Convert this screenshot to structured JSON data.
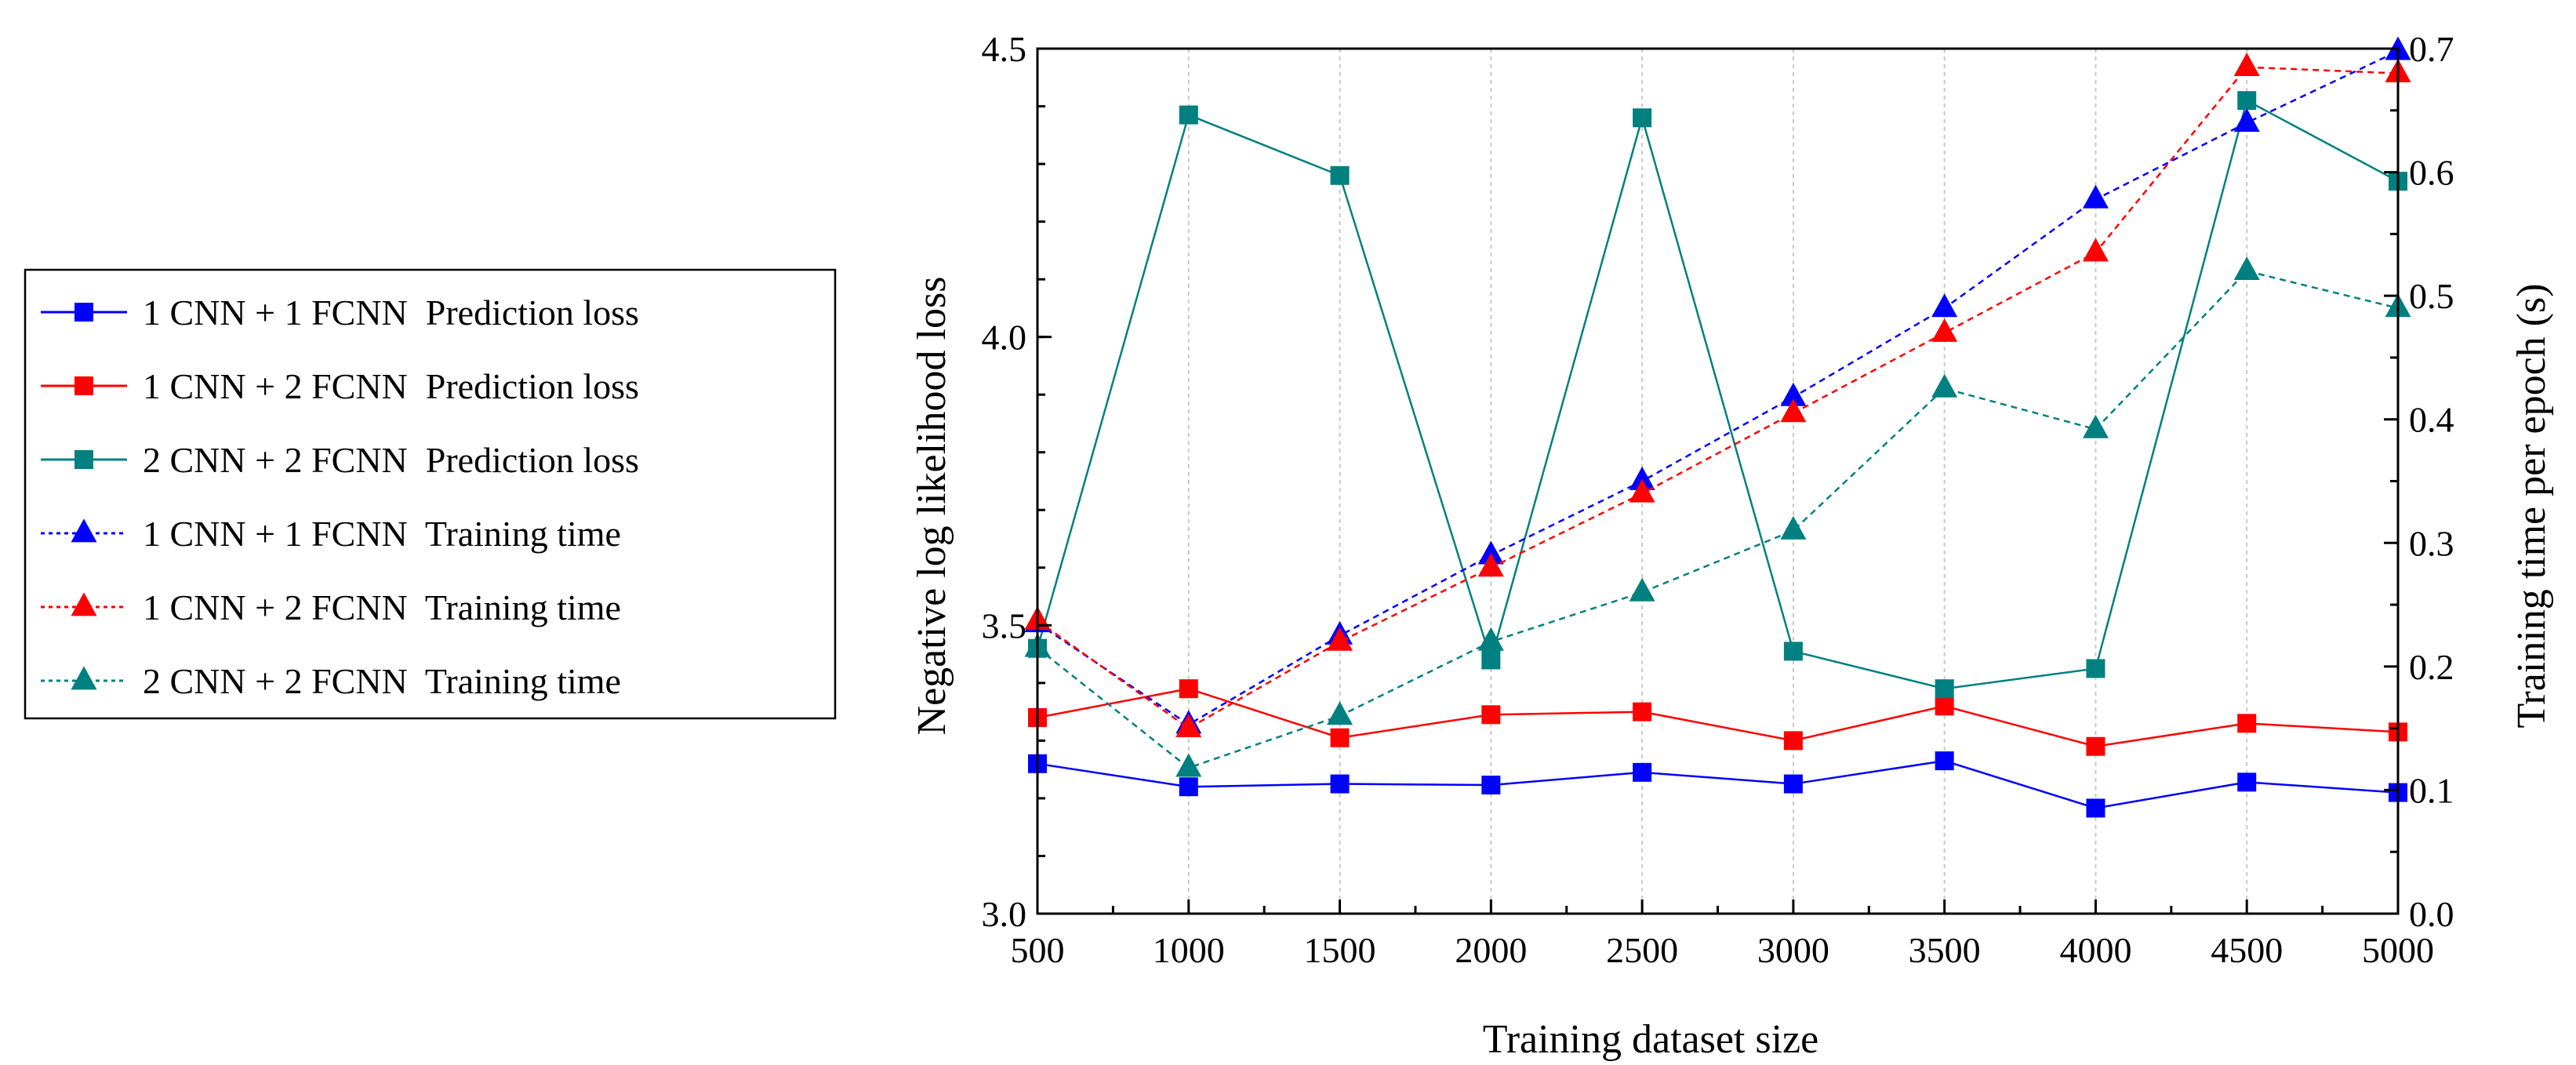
{
  "chart_data": {
    "type": "line",
    "title": "",
    "xlabel": "Training dataset size",
    "ylabel": "Negative log likelihood loss",
    "y2label": "Training time per epoch (s)",
    "x": [
      500,
      1000,
      1500,
      2000,
      2500,
      3000,
      3500,
      4000,
      4500,
      5000
    ],
    "xlim": [
      500,
      5000
    ],
    "ylim": [
      3.0,
      4.5
    ],
    "y2lim": [
      0.0,
      0.7
    ],
    "x_ticks": [
      "500",
      "1000",
      "1500",
      "2000",
      "2500",
      "3000",
      "3500",
      "4000",
      "4500",
      "5000"
    ],
    "y_ticks": [
      "3.0",
      "3.5",
      "4.0",
      "4.5"
    ],
    "y2_ticks": [
      "0.0",
      "0.1",
      "0.2",
      "0.3",
      "0.4",
      "0.5",
      "0.6",
      "0.7"
    ],
    "grid": "vertical dotted",
    "legend_position": "left, outside plot",
    "series": [
      {
        "name": "1 CNN + 1 FCNN  Prediction loss",
        "axis": "left",
        "marker": "square",
        "line": "solid",
        "color": "#0000ff",
        "values": [
          3.26,
          3.22,
          3.225,
          3.223,
          3.245,
          3.225,
          3.265,
          3.183,
          3.228,
          3.21
        ]
      },
      {
        "name": "1 CNN + 2 FCNN  Prediction loss",
        "axis": "left",
        "marker": "square",
        "line": "solid",
        "color": "#ff0000",
        "values": [
          3.34,
          3.39,
          3.305,
          3.345,
          3.35,
          3.3,
          3.36,
          3.29,
          3.33,
          3.315
        ]
      },
      {
        "name": "2 CNN + 2 FCNN  Prediction loss",
        "axis": "left",
        "marker": "square",
        "line": "solid",
        "color": "#008080",
        "values": [
          3.46,
          4.385,
          4.28,
          3.44,
          4.38,
          3.455,
          3.39,
          3.425,
          4.41,
          4.27
        ]
      },
      {
        "name": "1 CNN + 1 FCNN  Training time",
        "axis": "right",
        "marker": "triangle",
        "line": "dashed",
        "color": "#0000ff",
        "values": [
          0.235,
          0.153,
          0.225,
          0.29,
          0.35,
          0.418,
          0.49,
          0.578,
          0.64,
          0.698
        ]
      },
      {
        "name": "1 CNN + 2 FCNN  Training time",
        "axis": "right",
        "marker": "triangle",
        "line": "dashed",
        "color": "#ff0000",
        "values": [
          0.237,
          0.15,
          0.22,
          0.28,
          0.34,
          0.405,
          0.47,
          0.535,
          0.685,
          0.68
        ]
      },
      {
        "name": "2 CNN + 2 FCNN  Training time",
        "axis": "right",
        "marker": "triangle",
        "line": "dashed",
        "color": "#008080",
        "values": [
          0.215,
          0.118,
          0.16,
          0.22,
          0.26,
          0.31,
          0.425,
          0.392,
          0.52,
          0.49
        ]
      }
    ]
  }
}
